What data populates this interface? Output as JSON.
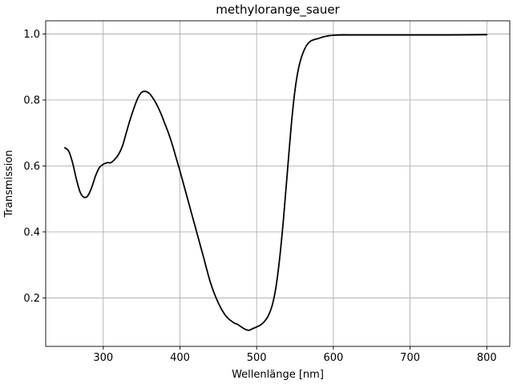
{
  "chart_data": {
    "type": "line",
    "title": "methylorange_sauer",
    "xlabel": "Wellenlänge [nm]",
    "ylabel": "Transmission",
    "xlim": [
      225,
      830
    ],
    "ylim": [
      0.053,
      1.04
    ],
    "xticks": [
      300,
      400,
      500,
      600,
      700,
      800
    ],
    "yticks": [
      0.2,
      0.4,
      0.6,
      0.8,
      1.0
    ],
    "xtick_labels": [
      "300",
      "400",
      "500",
      "600",
      "700",
      "800"
    ],
    "ytick_labels": [
      "0.2",
      "0.4",
      "0.6",
      "0.8",
      "1.0"
    ],
    "grid": true,
    "series": [
      {
        "color": "#000000",
        "x": [
          250,
          255,
          260,
          265,
          270,
          275,
          280,
          285,
          290,
          295,
          300,
          305,
          310,
          315,
          320,
          325,
          330,
          335,
          340,
          345,
          350,
          355,
          360,
          365,
          370,
          375,
          380,
          385,
          390,
          395,
          400,
          410,
          420,
          430,
          440,
          450,
          460,
          470,
          475,
          480,
          485,
          490,
          495,
          500,
          505,
          510,
          515,
          520,
          525,
          530,
          535,
          540,
          545,
          550,
          555,
          560,
          565,
          570,
          575,
          580,
          585,
          590,
          595,
          600,
          610,
          620,
          650,
          700,
          750,
          800
        ],
        "y": [
          0.655,
          0.645,
          0.61,
          0.56,
          0.52,
          0.505,
          0.51,
          0.535,
          0.57,
          0.595,
          0.605,
          0.61,
          0.61,
          0.62,
          0.635,
          0.66,
          0.7,
          0.74,
          0.775,
          0.805,
          0.823,
          0.826,
          0.82,
          0.805,
          0.785,
          0.76,
          0.73,
          0.7,
          0.665,
          0.625,
          0.585,
          0.5,
          0.415,
          0.33,
          0.245,
          0.185,
          0.145,
          0.125,
          0.12,
          0.112,
          0.105,
          0.102,
          0.107,
          0.112,
          0.118,
          0.128,
          0.145,
          0.175,
          0.23,
          0.32,
          0.44,
          0.58,
          0.72,
          0.83,
          0.9,
          0.94,
          0.965,
          0.978,
          0.983,
          0.986,
          0.99,
          0.993,
          0.995,
          0.996,
          0.997,
          0.997,
          0.997,
          0.997,
          0.997,
          0.998
        ]
      }
    ]
  }
}
